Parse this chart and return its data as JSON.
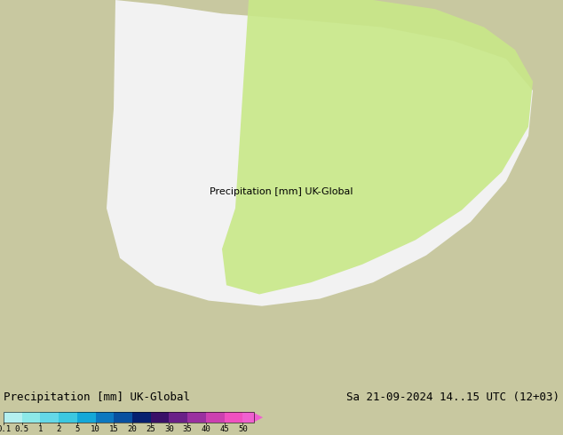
{
  "title_left": "Precipitation [mm] UK-Global",
  "title_right": "Sa 21-09-2024 14..15 UTC (12+03)",
  "colorbar_levels": [
    "0.1",
    "0.5",
    "1",
    "2",
    "5",
    "10",
    "15",
    "20",
    "25",
    "30",
    "35",
    "40",
    "45",
    "50"
  ],
  "colorbar_colors": [
    "#b4f0f0",
    "#8ce8e8",
    "#64d8e8",
    "#3cc8e0",
    "#14a8d8",
    "#0c78c0",
    "#0850a0",
    "#062070",
    "#3a1068",
    "#6a2088",
    "#9a30a0",
    "#cc40b0",
    "#f050c0",
    "#f060d0"
  ],
  "bg_land_color": "#c8c8a0",
  "bg_ocean_color": "#a8b8c8",
  "domain_color": "#f0f0f0",
  "precip_light_green": "#c0e890",
  "precip_light_cyan": "#90e0f0",
  "coast_color": "#787878",
  "border_color": "#909090",
  "isobar_red_color": "#e00000",
  "isobar_blue_color": "#0000e0",
  "font_color": "#000000",
  "label_fontsize": 8,
  "title_fontsize": 9,
  "fig_width": 6.34,
  "fig_height": 4.9,
  "dpi": 100
}
